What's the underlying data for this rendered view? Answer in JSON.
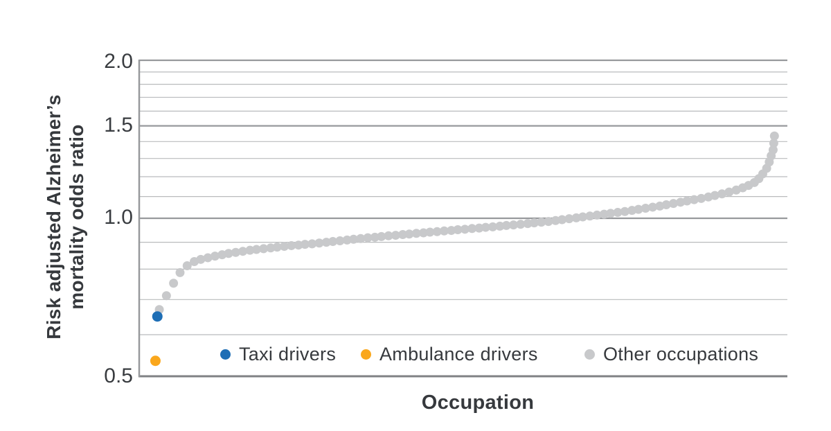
{
  "chart": {
    "y_title_line1": "Risk adjusted Alzheimer’s",
    "y_title_line2": "mortality odds ratio",
    "x_title": "Occupation",
    "y_tick_labels": [
      "2.0",
      "1.5",
      "1.0",
      "0.5"
    ]
  },
  "chart_data": {
    "type": "scatter",
    "title": "",
    "xlabel": "Occupation",
    "ylabel": "Risk adjusted Alzheimer’s mortality odds ratio",
    "y_scale": "log",
    "ylim": [
      0.5,
      2.0
    ],
    "y_ticks": [
      2.0,
      1.5,
      1.0,
      0.5
    ],
    "y_gridline_step": 0.1,
    "grid": true,
    "legend_position": "bottom-inside",
    "x_axis_note": "occupations ordered by odds ratio; x values are rank fractions along the axis",
    "colors": {
      "taxi_blue": "#1e6eb5",
      "ambulance_orange": "#faa71c",
      "other_gray": "#c8c9cb",
      "minor_gridline": "#b9bbbd",
      "major_gridline": "#97999c",
      "bottom_axis": "#7f8184",
      "text": "#36393d"
    },
    "series": [
      {
        "name": "Taxi drivers",
        "color": "#1e6eb5",
        "marker_radius": 7.5,
        "points": [
          [
            0.027,
            0.65
          ]
        ]
      },
      {
        "name": "Ambulance drivers",
        "color": "#faa71c",
        "marker_radius": 7.5,
        "points": [
          [
            0.024,
            0.535
          ]
        ]
      },
      {
        "name": "Other occupations",
        "color": "#c8c9cb",
        "marker_radius": 6.5,
        "points": [
          [
            0.03,
            0.67
          ],
          [
            0.041,
            0.712
          ],
          [
            0.052,
            0.752
          ],
          [
            0.062,
            0.788
          ],
          [
            0.073,
            0.812
          ],
          [
            0.084,
            0.827
          ],
          [
            0.094,
            0.835
          ],
          [
            0.105,
            0.841
          ],
          [
            0.116,
            0.847
          ],
          [
            0.127,
            0.852
          ],
          [
            0.137,
            0.857
          ],
          [
            0.148,
            0.861
          ],
          [
            0.159,
            0.865
          ],
          [
            0.17,
            0.869
          ],
          [
            0.18,
            0.872
          ],
          [
            0.191,
            0.875
          ],
          [
            0.202,
            0.878
          ],
          [
            0.212,
            0.881
          ],
          [
            0.223,
            0.884
          ],
          [
            0.234,
            0.887
          ],
          [
            0.245,
            0.889
          ],
          [
            0.255,
            0.892
          ],
          [
            0.266,
            0.894
          ],
          [
            0.277,
            0.897
          ],
          [
            0.288,
            0.9
          ],
          [
            0.298,
            0.903
          ],
          [
            0.309,
            0.906
          ],
          [
            0.32,
            0.909
          ],
          [
            0.33,
            0.912
          ],
          [
            0.341,
            0.915
          ],
          [
            0.352,
            0.918
          ],
          [
            0.363,
            0.92
          ],
          [
            0.373,
            0.923
          ],
          [
            0.384,
            0.926
          ],
          [
            0.395,
            0.928
          ],
          [
            0.406,
            0.931
          ],
          [
            0.416,
            0.933
          ],
          [
            0.427,
            0.936
          ],
          [
            0.438,
            0.938
          ],
          [
            0.448,
            0.941
          ],
          [
            0.459,
            0.943
          ],
          [
            0.47,
            0.946
          ],
          [
            0.481,
            0.948
          ],
          [
            0.491,
            0.951
          ],
          [
            0.502,
            0.953
          ],
          [
            0.513,
            0.956
          ],
          [
            0.524,
            0.958
          ],
          [
            0.534,
            0.961
          ],
          [
            0.545,
            0.963
          ],
          [
            0.556,
            0.966
          ],
          [
            0.566,
            0.969
          ],
          [
            0.577,
            0.971
          ],
          [
            0.588,
            0.974
          ],
          [
            0.599,
            0.977
          ],
          [
            0.609,
            0.98
          ],
          [
            0.62,
            0.983
          ],
          [
            0.631,
            0.986
          ],
          [
            0.642,
            0.99
          ],
          [
            0.652,
            0.994
          ],
          [
            0.663,
            0.998
          ],
          [
            0.674,
            1.002
          ],
          [
            0.684,
            1.006
          ],
          [
            0.695,
            1.01
          ],
          [
            0.706,
            1.014
          ],
          [
            0.717,
            1.018
          ],
          [
            0.727,
            1.022
          ],
          [
            0.738,
            1.026
          ],
          [
            0.749,
            1.03
          ],
          [
            0.76,
            1.035
          ],
          [
            0.77,
            1.04
          ],
          [
            0.781,
            1.045
          ],
          [
            0.792,
            1.05
          ],
          [
            0.803,
            1.055
          ],
          [
            0.813,
            1.061
          ],
          [
            0.824,
            1.067
          ],
          [
            0.835,
            1.073
          ],
          [
            0.845,
            1.079
          ],
          [
            0.856,
            1.085
          ],
          [
            0.867,
            1.091
          ],
          [
            0.878,
            1.098
          ],
          [
            0.888,
            1.105
          ],
          [
            0.899,
            1.113
          ],
          [
            0.91,
            1.122
          ],
          [
            0.921,
            1.132
          ],
          [
            0.931,
            1.143
          ],
          [
            0.94,
            1.155
          ],
          [
            0.949,
            1.17
          ],
          [
            0.956,
            1.19
          ],
          [
            0.962,
            1.215
          ],
          [
            0.968,
            1.245
          ],
          [
            0.972,
            1.28
          ],
          [
            0.975,
            1.315
          ],
          [
            0.978,
            1.35
          ],
          [
            0.979,
            1.39
          ],
          [
            0.98,
            1.435
          ]
        ]
      }
    ]
  },
  "legend": {
    "items": [
      {
        "label": "Taxi drivers"
      },
      {
        "label": "Ambulance drivers"
      },
      {
        "label": "Other occupations"
      }
    ]
  }
}
